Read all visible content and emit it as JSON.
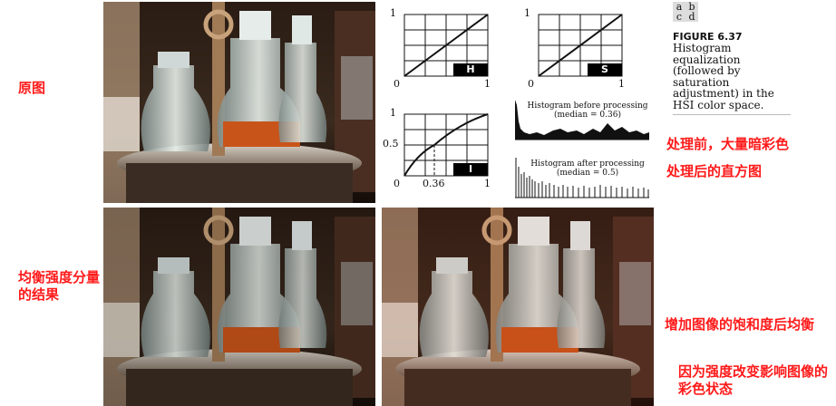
{
  "labels": {
    "original": "原图",
    "equalized": "均衡强度分量的结果",
    "before": "处理前，大量暗彩色",
    "after": "处理后的直方图",
    "saturation": "增加图像的饱和度后均衡",
    "reason": "因为强度改变影响图像的彩色状态"
  },
  "figure": {
    "grid_letters": [
      "a",
      "b",
      "c",
      "d"
    ],
    "title": "FIGURE 6.37",
    "caption_lines": [
      "Histogram",
      "equalization",
      "(followed by",
      "saturation",
      "adjustment) in the",
      "HSI color space."
    ]
  },
  "transfer_plots": [
    {
      "tag": "H",
      "y_top": "1",
      "x_left": "0",
      "x_right": "1"
    },
    {
      "tag": "S",
      "y_top": "1",
      "x_left": "0",
      "x_right": "1"
    },
    {
      "tag": "I",
      "y_top": "1",
      "y_mid": "0.5",
      "x_left": "0",
      "x_mid": "0.36",
      "x_right": "1"
    }
  ],
  "histograms": [
    {
      "title": "Histogram before processing",
      "median": "(median = 0.36)"
    },
    {
      "title": "Histogram after processing",
      "median": "(median = 0.5)"
    }
  ],
  "colors": {
    "accent_red": "#ff1a1a",
    "photo_dark": "#1a120e"
  }
}
